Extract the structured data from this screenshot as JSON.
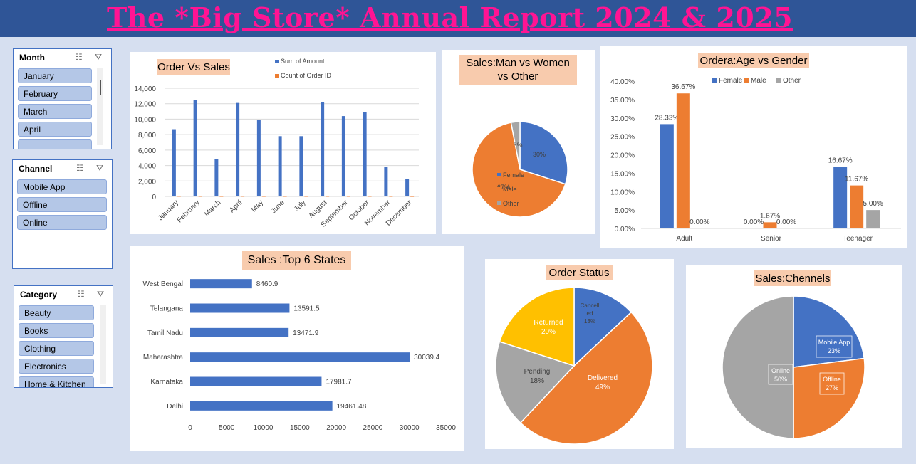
{
  "header": {
    "title": "The *Big Store* Annual Report 2024 & 2025"
  },
  "slicers": {
    "month": {
      "title": "Month",
      "items": [
        "January",
        "February",
        "March",
        "April"
      ]
    },
    "channel": {
      "title": "Channel",
      "items": [
        "Mobile App",
        "Offline",
        "Online"
      ]
    },
    "category": {
      "title": "Category",
      "items": [
        "Beauty",
        "Books",
        "Clothing",
        "Electronics",
        "Home & Kitchen"
      ]
    }
  },
  "chart_data": [
    {
      "id": "order_vs_sales",
      "type": "bar",
      "title": "Order Vs Sales",
      "categories": [
        "January",
        "February",
        "March",
        "April",
        "May",
        "June",
        "July",
        "August",
        "September",
        "October",
        "November",
        "December"
      ],
      "series": [
        {
          "name": "Sum of Amount",
          "values": [
            8700,
            12500,
            4800,
            12100,
            9900,
            7800,
            7800,
            12200,
            10400,
            10900,
            3800,
            2300
          ],
          "color": "#4472c4"
        },
        {
          "name": "Count of Order ID",
          "values": [
            40,
            35,
            28,
            38,
            32,
            34,
            32,
            35,
            33,
            36,
            30,
            22
          ],
          "color": "#ed7d31"
        }
      ],
      "yticks": [
        "14,000",
        "12,000",
        "10,000",
        "8,000",
        "6,000",
        "4,000",
        "2,000",
        "0"
      ],
      "ylim": [
        0,
        14000
      ],
      "legend": "top"
    },
    {
      "id": "sales_gender",
      "type": "pie",
      "title": "Sales:Man vs Women vs Other",
      "slices": [
        {
          "label": "Female",
          "value": 30,
          "text": "30%",
          "color": "#4472c4"
        },
        {
          "label": "Male",
          "value": 67,
          "text": "67%",
          "color": "#ed7d31"
        },
        {
          "label": "Other",
          "value": 3,
          "text": "3%",
          "color": "#a5a5a5"
        }
      ],
      "legend": "overlaid left"
    },
    {
      "id": "age_gender",
      "type": "bar",
      "title": "Ordera:Age vs Gender",
      "categories": [
        "Adult",
        "Senior",
        "Teenager"
      ],
      "series": [
        {
          "name": "Female",
          "values": [
            28.33,
            0.0,
            16.67
          ],
          "labels": [
            "28.33%",
            "0.00%",
            "16.67%"
          ],
          "color": "#4472c4"
        },
        {
          "name": "Male",
          "values": [
            36.67,
            1.67,
            11.67
          ],
          "labels": [
            "36.67%",
            "1.67%",
            "11.67%"
          ],
          "color": "#ed7d31"
        },
        {
          "name": "Other",
          "values": [
            0.0,
            0.0,
            5.0
          ],
          "labels": [
            "0.00%",
            "0.00%",
            "5.00%"
          ],
          "color": "#a5a5a5"
        }
      ],
      "yticks": [
        "40.00%",
        "35.00%",
        "30.00%",
        "25.00%",
        "20.00%",
        "15.00%",
        "10.00%",
        "5.00%",
        "0.00%"
      ],
      "ylim": [
        0,
        40
      ],
      "legend": "top"
    },
    {
      "id": "top_states",
      "type": "bar",
      "orientation": "horizontal",
      "title": "Sales :Top 6  States",
      "categories": [
        "West Bengal",
        "Telangana",
        "Tamil Nadu",
        "Maharashtra",
        "Karnataka",
        "Delhi"
      ],
      "values": [
        8460.9,
        13591.5,
        13471.9,
        30039.4,
        17981.7,
        19461.48
      ],
      "labels": [
        "8460.9",
        "13591.5",
        "13471.9",
        "30039.4",
        "17981.7",
        "19461.48"
      ],
      "xticks": [
        "0",
        "5000",
        "10000",
        "15000",
        "20000",
        "25000",
        "30000",
        "35000"
      ],
      "xlim": [
        0,
        35000
      ],
      "color": "#4472c4"
    },
    {
      "id": "order_status",
      "type": "pie",
      "title": "Order Status",
      "slices": [
        {
          "label": "Cancelled",
          "value": 13,
          "text": "13%",
          "color": "#4472c4"
        },
        {
          "label": "Delivered",
          "value": 49,
          "text": "49%",
          "color": "#ed7d31"
        },
        {
          "label": "Pending",
          "value": 18,
          "text": "18%",
          "color": "#a5a5a5"
        },
        {
          "label": "Returned",
          "value": 20,
          "text": "20%",
          "color": "#ffc000"
        }
      ]
    },
    {
      "id": "sales_channels",
      "type": "pie",
      "title": "Sales:Chennels",
      "slices": [
        {
          "label": "Mobile App",
          "value": 23,
          "text": "23%",
          "color": "#4472c4"
        },
        {
          "label": "Offline",
          "value": 27,
          "text": "27%",
          "color": "#ed7d31"
        },
        {
          "label": "Online",
          "value": 50,
          "text": "50%",
          "color": "#a5a5a5"
        }
      ]
    }
  ]
}
